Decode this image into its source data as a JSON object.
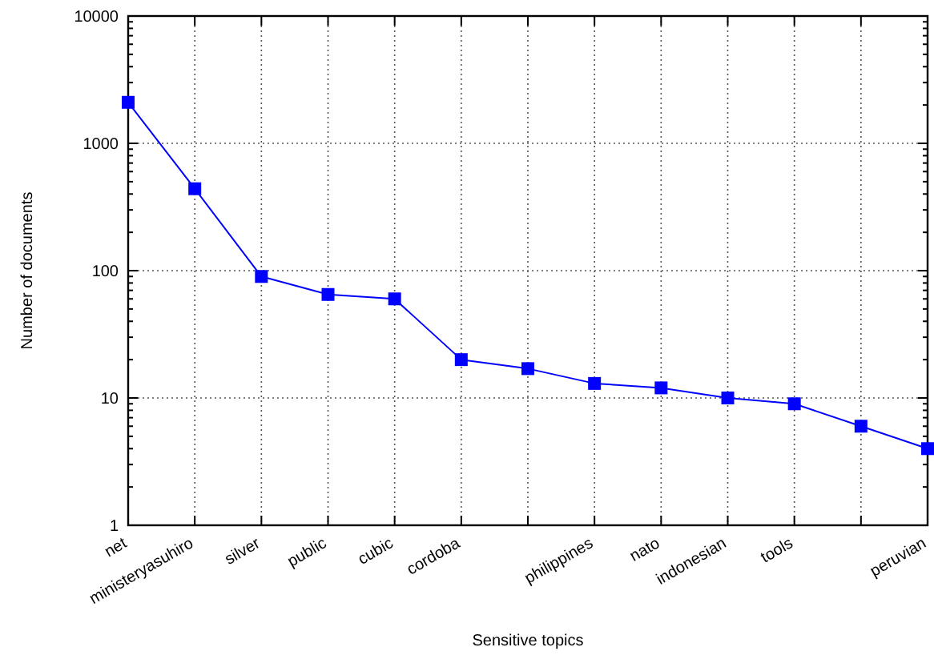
{
  "chart_data": {
    "type": "line",
    "xlabel": "Sensitive topics",
    "ylabel": "Number of documents",
    "categories": [
      "net",
      "ministeryasuhiro",
      "silver",
      "public",
      "cubic",
      "cordoba",
      null,
      "philippines",
      "nato",
      "indonesian",
      "tools",
      null,
      "peruvian"
    ],
    "series": [
      {
        "color": "#0000ff",
        "values": [
          2100,
          440,
          90,
          65,
          60,
          20,
          17,
          13,
          12,
          10,
          9,
          6,
          4
        ]
      }
    ],
    "log": "y",
    "ylim": [
      1,
      10000
    ],
    "yticks": [
      1,
      10,
      100,
      1000,
      10000
    ],
    "grid": true,
    "marker": "square",
    "line_style": "solid"
  }
}
